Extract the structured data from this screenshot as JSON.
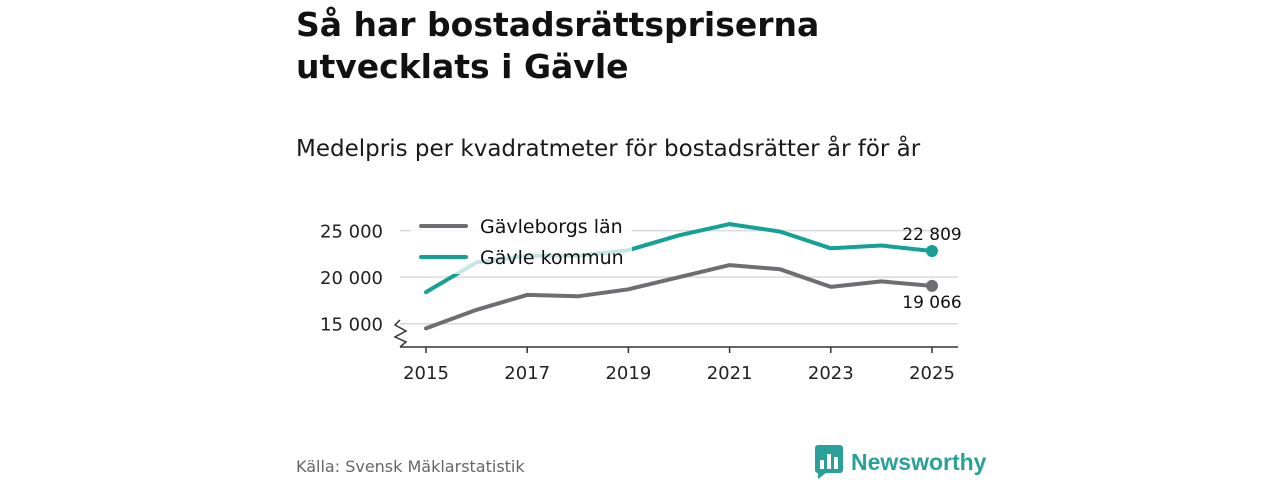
{
  "title": "Så har bostadsrättspriserna utvecklats i Gävle",
  "subtitle": "Medelpris per kvadratmeter för bostadsrätter år för år",
  "source": "Källa: Svensk Mäklarstatistik",
  "brand": "Newsworthy",
  "colors": {
    "lan": "#6e6e72",
    "kommun": "#14a196",
    "grid": "#d9d9d9",
    "axis": "#333333",
    "brand": "#2aa198"
  },
  "chart_data": {
    "type": "line",
    "x": [
      2015,
      2016,
      2017,
      2018,
      2019,
      2020,
      2021,
      2022,
      2023,
      2024,
      2025
    ],
    "series": [
      {
        "name": "Gävleborgs län",
        "values": [
          14500,
          16500,
          18100,
          17950,
          18700,
          20000,
          21300,
          20850,
          18950,
          19550,
          19066
        ],
        "end_label": "19 066"
      },
      {
        "name": "Gävle kommun",
        "values": [
          18400,
          21600,
          22300,
          22300,
          22900,
          24500,
          25700,
          24900,
          23100,
          23400,
          22809
        ],
        "end_label": "22 809"
      }
    ],
    "x_ticks": [
      "2015",
      "2017",
      "2019",
      "2021",
      "2023",
      "2025"
    ],
    "y_ticks": [
      15000,
      20000,
      25000
    ],
    "y_tick_labels": [
      "15 000",
      "20 000",
      "25 000"
    ],
    "ylim": [
      12500,
      27000
    ],
    "xlim": [
      2015,
      2025
    ],
    "y_axis_broken": true,
    "legend_position": "top-left"
  }
}
